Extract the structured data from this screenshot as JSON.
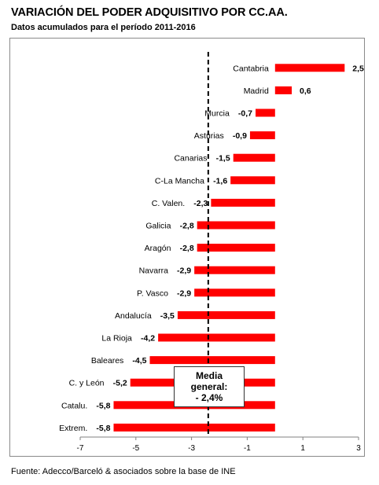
{
  "chart_data": {
    "type": "bar",
    "orientation": "horizontal",
    "title": "VARIACIÓN DEL PODER ADQUISITIVO POR CC.AA.",
    "subtitle": "Datos acumulados para el período 2011-2016",
    "categories": [
      "Cantabria",
      "Madrid",
      "Murcia",
      "Asturias",
      "Canarias",
      "C-La Mancha",
      "C. Valen.",
      "Galicia",
      "Aragón",
      "Navarra",
      "P. Vasco",
      "Andalucía",
      "La Rioja",
      "Baleares",
      "C. y León",
      "Catalu.",
      "Extrem."
    ],
    "values": [
      2.5,
      0.6,
      -0.7,
      -0.9,
      -1.5,
      -1.6,
      -2.3,
      -2.8,
      -2.8,
      -2.9,
      -2.9,
      -3.5,
      -4.2,
      -4.5,
      -5.2,
      -5.8,
      -5.8
    ],
    "value_labels": [
      "2,5",
      "0,6",
      "-0,7",
      "-0,9",
      "-1,5",
      "-1,6",
      "-2,3",
      "-2,8",
      "-2,8",
      "-2,9",
      "-2,9",
      "-3,5",
      "-4,2",
      "-4,5",
      "-5,2",
      "-5,8",
      "-5,8"
    ],
    "xlim": [
      -7,
      3
    ],
    "xticks": [
      -7,
      -5,
      -3,
      -1,
      1,
      3
    ],
    "xtick_labels": [
      "-7",
      "-5",
      "-3",
      "-1",
      "1",
      "3"
    ],
    "reference_line": {
      "value": -2.4,
      "style": "dashed"
    },
    "annotation": {
      "line1": "Media",
      "line2": "general:",
      "line3": "- 2,4%"
    },
    "bar_color": "#ff0000",
    "grid": false
  },
  "source": "Fuente: Adecco/Barceló & asociados sobre la base de INE"
}
